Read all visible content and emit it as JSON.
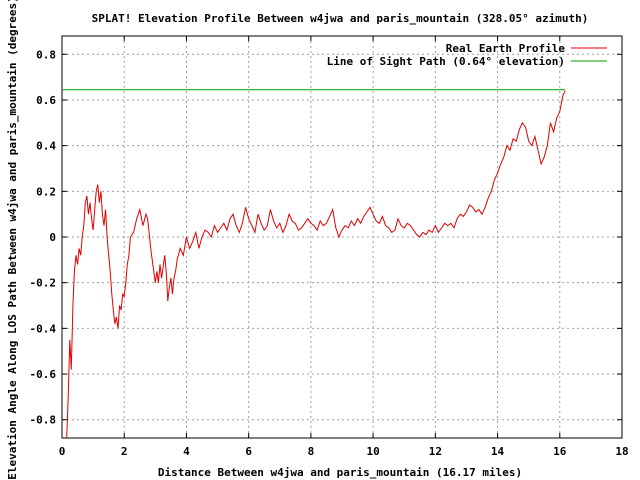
{
  "chart_data": {
    "type": "line",
    "title": "SPLAT! Elevation Profile Between w4jwa and paris_mountain (328.05° azimuth)",
    "xlabel": "Distance Between w4jwa and paris_mountain (16.17 miles)",
    "ylabel": "Elevation Angle Along LOS Path Between w4jwa and paris_mountain (degrees)",
    "xlim": [
      0,
      18
    ],
    "ylim": [
      -0.88,
      0.88
    ],
    "xticks": [
      "0",
      "2",
      "4",
      "6",
      "8",
      "10",
      "12",
      "14",
      "16",
      "18"
    ],
    "yticks": [
      "-0.8",
      "-0.6",
      "-0.4",
      "-0.2",
      "0",
      "0.2",
      "0.4",
      "0.6",
      "0.8"
    ],
    "grid": true,
    "legend_position": "top-right",
    "series": [
      {
        "name": "Real Earth Profile",
        "color": "#e00000",
        "x": [
          0.15,
          0.2,
          0.25,
          0.3,
          0.35,
          0.4,
          0.45,
          0.5,
          0.55,
          0.6,
          0.65,
          0.7,
          0.75,
          0.8,
          0.85,
          0.9,
          0.95,
          1.0,
          1.05,
          1.1,
          1.15,
          1.2,
          1.25,
          1.3,
          1.35,
          1.4,
          1.45,
          1.5,
          1.55,
          1.6,
          1.65,
          1.7,
          1.75,
          1.8,
          1.85,
          1.9,
          1.95,
          2.0,
          2.05,
          2.1,
          2.15,
          2.2,
          2.3,
          2.4,
          2.5,
          2.6,
          2.7,
          2.75,
          2.8,
          2.85,
          2.9,
          3.0,
          3.05,
          3.1,
          3.15,
          3.2,
          3.3,
          3.35,
          3.4,
          3.45,
          3.5,
          3.55,
          3.6,
          3.65,
          3.7,
          3.8,
          3.9,
          4.0,
          4.1,
          4.2,
          4.3,
          4.4,
          4.5,
          4.6,
          4.7,
          4.8,
          4.9,
          5.0,
          5.1,
          5.2,
          5.3,
          5.4,
          5.5,
          5.6,
          5.7,
          5.8,
          5.9,
          6.0,
          6.1,
          6.2,
          6.3,
          6.4,
          6.5,
          6.6,
          6.7,
          6.8,
          6.9,
          7.0,
          7.1,
          7.2,
          7.3,
          7.4,
          7.5,
          7.6,
          7.7,
          7.8,
          7.9,
          8.0,
          8.1,
          8.2,
          8.3,
          8.4,
          8.5,
          8.6,
          8.7,
          8.8,
          8.9,
          9.0,
          9.1,
          9.2,
          9.3,
          9.4,
          9.5,
          9.6,
          9.7,
          9.8,
          9.9,
          10.0,
          10.1,
          10.2,
          10.3,
          10.4,
          10.5,
          10.6,
          10.7,
          10.8,
          10.9,
          11.0,
          11.1,
          11.2,
          11.3,
          11.4,
          11.5,
          11.6,
          11.7,
          11.8,
          11.9,
          12.0,
          12.1,
          12.2,
          12.3,
          12.4,
          12.5,
          12.6,
          12.7,
          12.8,
          12.9,
          13.0,
          13.1,
          13.2,
          13.3,
          13.4,
          13.5,
          13.6,
          13.7,
          13.8,
          13.9,
          14.0,
          14.1,
          14.2,
          14.3,
          14.4,
          14.5,
          14.6,
          14.7,
          14.8,
          14.9,
          15.0,
          15.1,
          15.2,
          15.3,
          15.4,
          15.5,
          15.6,
          15.7,
          15.8,
          15.9,
          16.0,
          16.1,
          16.17
        ],
        "y": [
          -0.88,
          -0.7,
          -0.45,
          -0.58,
          -0.3,
          -0.15,
          -0.08,
          -0.12,
          -0.05,
          -0.08,
          0.0,
          0.05,
          0.15,
          0.18,
          0.1,
          0.15,
          0.08,
          0.03,
          0.12,
          0.2,
          0.23,
          0.15,
          0.2,
          0.1,
          0.05,
          0.12,
          0.0,
          -0.08,
          -0.15,
          -0.25,
          -0.32,
          -0.38,
          -0.35,
          -0.4,
          -0.3,
          -0.32,
          -0.25,
          -0.26,
          -0.2,
          -0.12,
          -0.08,
          0.0,
          0.02,
          0.08,
          0.12,
          0.05,
          0.1,
          0.08,
          0.02,
          -0.05,
          -0.1,
          -0.2,
          -0.15,
          -0.2,
          -0.12,
          -0.18,
          -0.08,
          -0.15,
          -0.28,
          -0.22,
          -0.18,
          -0.25,
          -0.18,
          -0.15,
          -0.1,
          -0.05,
          -0.08,
          0.0,
          -0.05,
          -0.02,
          0.02,
          -0.05,
          0.0,
          0.03,
          0.02,
          0.0,
          0.05,
          0.02,
          0.04,
          0.06,
          0.03,
          0.08,
          0.1,
          0.05,
          0.02,
          0.06,
          0.13,
          0.08,
          0.05,
          0.02,
          0.1,
          0.06,
          0.03,
          0.05,
          0.12,
          0.07,
          0.04,
          0.06,
          0.02,
          0.05,
          0.1,
          0.07,
          0.06,
          0.03,
          0.04,
          0.06,
          0.08,
          0.06,
          0.05,
          0.03,
          0.07,
          0.05,
          0.06,
          0.09,
          0.12,
          0.04,
          0.0,
          0.03,
          0.05,
          0.04,
          0.07,
          0.05,
          0.08,
          0.06,
          0.09,
          0.11,
          0.13,
          0.1,
          0.07,
          0.06,
          0.09,
          0.05,
          0.04,
          0.02,
          0.03,
          0.08,
          0.05,
          0.04,
          0.06,
          0.05,
          0.03,
          0.01,
          0.0,
          0.02,
          0.01,
          0.03,
          0.02,
          0.05,
          0.02,
          0.04,
          0.06,
          0.05,
          0.06,
          0.04,
          0.08,
          0.1,
          0.09,
          0.11,
          0.14,
          0.13,
          0.11,
          0.12,
          0.1,
          0.13,
          0.17,
          0.2,
          0.25,
          0.28,
          0.32,
          0.35,
          0.4,
          0.38,
          0.43,
          0.42,
          0.47,
          0.5,
          0.48,
          0.42,
          0.4,
          0.44,
          0.38,
          0.32,
          0.35,
          0.4,
          0.5,
          0.46,
          0.52,
          0.55,
          0.62,
          0.64
        ]
      },
      {
        "name": "Line of Sight Path (0.64° elevation)",
        "color": "#00a000",
        "x": [
          0,
          16.17
        ],
        "y": [
          0.645,
          0.645
        ]
      }
    ]
  }
}
